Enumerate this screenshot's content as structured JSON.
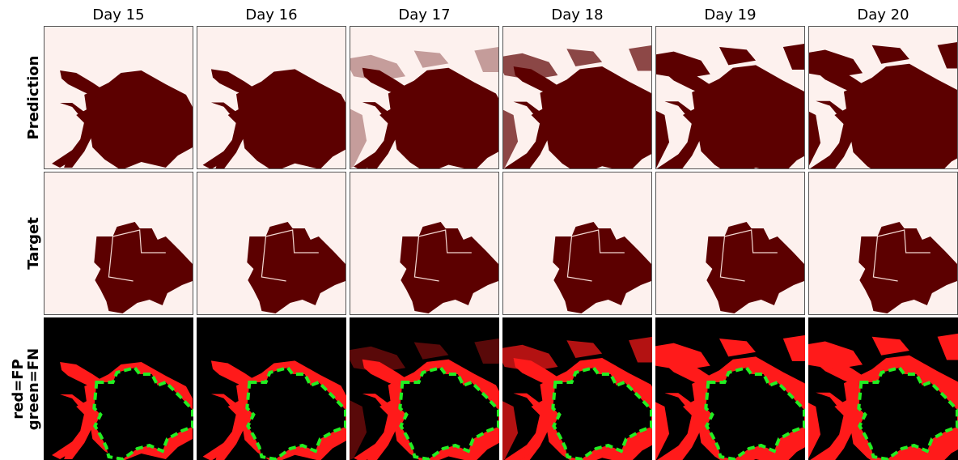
{
  "columns": [
    "Day 15",
    "Day 16",
    "Day 17",
    "Day 18",
    "Day 19",
    "Day 20"
  ],
  "rows": [
    [
      "Prediction"
    ],
    [
      "Target"
    ],
    [
      "red=FP",
      "green=FN"
    ]
  ]
}
